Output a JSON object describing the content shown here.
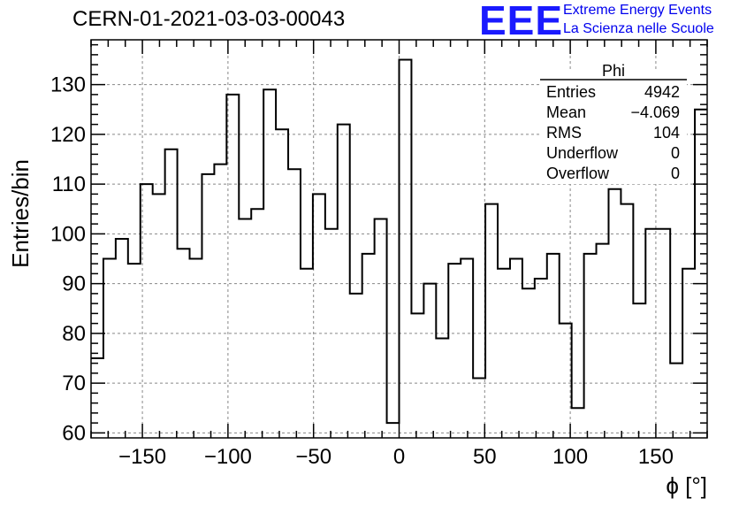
{
  "header": {
    "run_title": "CERN-01-2021-03-03-00043",
    "logo_text": "EEE",
    "org_line1": "Extreme Energy Events",
    "org_line2": "La Scienza nelle Scuole"
  },
  "stats": {
    "name": "Phi",
    "rows": [
      {
        "label": "Entries",
        "value": "4942"
      },
      {
        "label": "Mean",
        "value": "−4.069"
      },
      {
        "label": "RMS",
        "value": "104"
      },
      {
        "label": "Underflow",
        "value": "0"
      },
      {
        "label": "Overflow",
        "value": "0"
      }
    ]
  },
  "chart_data": {
    "type": "bar",
    "style": "step-histogram",
    "xlabel": "ϕ [°]",
    "ylabel": "Entries/bin",
    "xlim": [
      -180,
      180
    ],
    "ylim": [
      59,
      139
    ],
    "grid": true,
    "bin_width": 7.2,
    "bin_edges_start": -180,
    "x_ticks": [
      -150,
      -100,
      -50,
      0,
      50,
      100,
      150
    ],
    "y_ticks": [
      60,
      70,
      80,
      90,
      100,
      110,
      120,
      130
    ],
    "values": [
      75,
      95,
      99,
      94,
      110,
      108,
      117,
      97,
      95,
      112,
      114,
      128,
      103,
      105,
      129,
      121,
      113,
      93,
      108,
      101,
      122,
      88,
      96,
      103,
      62,
      135,
      84,
      90,
      79,
      94,
      95,
      71,
      106,
      93,
      95,
      89,
      91,
      96,
      82,
      65,
      96,
      98,
      109,
      106,
      86,
      101,
      101,
      74,
      93,
      125
    ],
    "colors": {
      "line": "#000000",
      "grid": "#888888",
      "text": "#000000"
    }
  }
}
